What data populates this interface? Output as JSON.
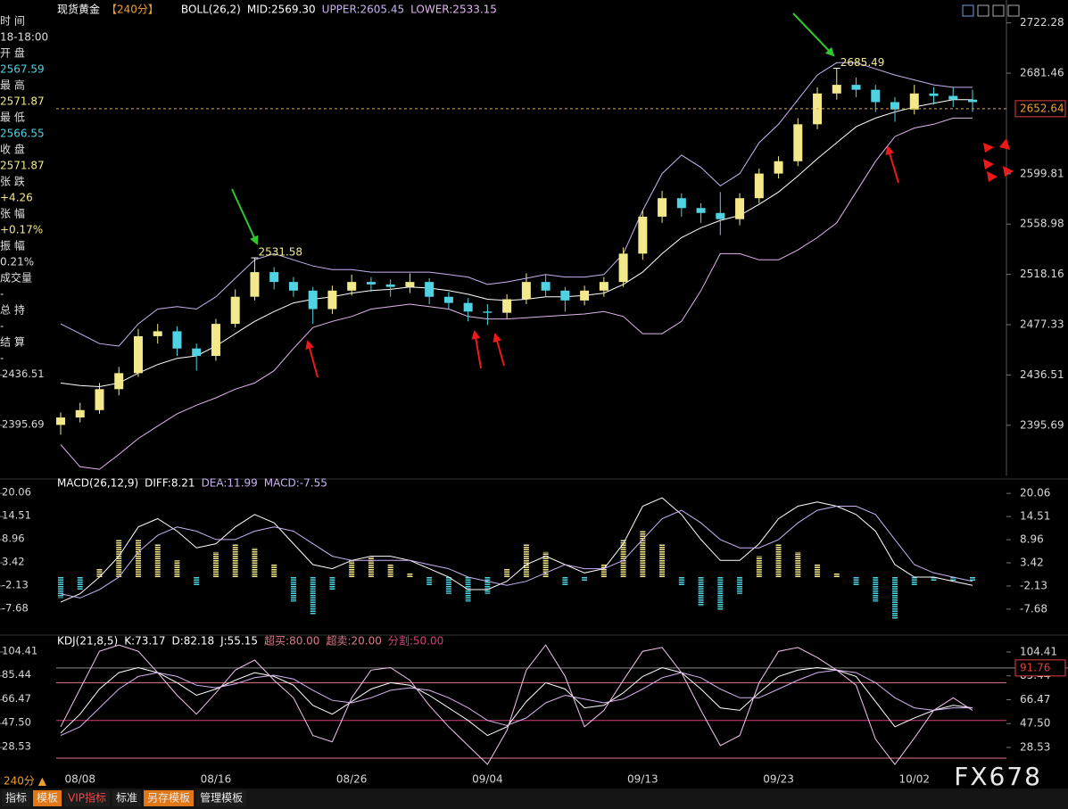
{
  "chart_data": [
    {
      "type": "candlestick",
      "title": "现货黄金",
      "period": "【240分】",
      "indicator": "BOLL(26,2)",
      "categories": [
        null,
        "08/08",
        null,
        null,
        null,
        null,
        null,
        null,
        "08/16",
        null,
        null,
        null,
        null,
        null,
        null,
        "08/26",
        null,
        null,
        null,
        null,
        null,
        null,
        "09/04",
        null,
        null,
        null,
        null,
        null,
        null,
        null,
        "09/13",
        null,
        null,
        null,
        null,
        null,
        null,
        "09/23",
        null,
        null,
        null,
        null,
        null,
        null,
        "10/02",
        null,
        null,
        null
      ],
      "open": [
        2396,
        2402,
        2408,
        2425,
        2438,
        2468,
        2472,
        2458,
        2452,
        2478,
        2500,
        2520,
        2512,
        2505,
        2490,
        2505,
        2512,
        2510,
        2508,
        2512,
        2500,
        2495,
        2488,
        2487,
        2498,
        2512,
        2505,
        2497,
        2505,
        2512,
        2535,
        2565,
        2580,
        2572,
        2568,
        2563,
        2580,
        2600,
        2610,
        2640,
        2665,
        2672,
        2668,
        2658,
        2652,
        2665,
        2663,
        2660
      ],
      "high": [
        2406,
        2414,
        2430,
        2443,
        2474,
        2478,
        2476,
        2462,
        2482,
        2506,
        2531.58,
        2524,
        2516,
        2508,
        2509,
        2518,
        2516,
        2514,
        2519,
        2515,
        2504,
        2499,
        2494,
        2502,
        2519,
        2518,
        2508,
        2509,
        2516,
        2540,
        2570,
        2586,
        2584,
        2576,
        2585,
        2584,
        2604,
        2614,
        2645,
        2670,
        2685.49,
        2678,
        2672,
        2662,
        2672,
        2670,
        2670,
        2668
      ],
      "low": [
        2388,
        2398,
        2405,
        2420,
        2435,
        2462,
        2452,
        2440,
        2448,
        2475,
        2497,
        2506,
        2500,
        2478,
        2486,
        2501,
        2504,
        2500,
        2503,
        2494,
        2490,
        2480,
        2477,
        2482,
        2494,
        2500,
        2488,
        2493,
        2500,
        2508,
        2530,
        2560,
        2565,
        2560,
        2550,
        2558,
        2576,
        2596,
        2606,
        2636,
        2660,
        2662,
        2650,
        2642,
        2648,
        2656,
        2654,
        2650
      ],
      "close": [
        2402,
        2408,
        2425,
        2438,
        2468,
        2472,
        2458,
        2452,
        2478,
        2500,
        2520,
        2512,
        2505,
        2490,
        2505,
        2512,
        2510,
        2508,
        2512,
        2500,
        2495,
        2488,
        2487,
        2498,
        2512,
        2505,
        2497,
        2505,
        2512,
        2535,
        2565,
        2580,
        2572,
        2568,
        2563,
        2580,
        2600,
        2610,
        2640,
        2665,
        2672,
        2668,
        2658,
        2652,
        2665,
        2663,
        2660,
        2658
      ],
      "up_color": "#f3e98a",
      "down_color": "#4fd3e2",
      "series": [
        {
          "name": "MID:2569.30",
          "color": "#ffffff",
          "values": [
            2430,
            2428,
            2427,
            2430,
            2438,
            2445,
            2450,
            2452,
            2460,
            2470,
            2480,
            2488,
            2495,
            2498,
            2500,
            2503,
            2505,
            2506,
            2508,
            2507,
            2505,
            2502,
            2498,
            2497,
            2498,
            2500,
            2500,
            2501,
            2503,
            2510,
            2520,
            2535,
            2548,
            2556,
            2562,
            2566,
            2575,
            2585,
            2598,
            2612,
            2625,
            2638,
            2645,
            2650,
            2654,
            2657,
            2660,
            2660
          ]
        },
        {
          "name": "UPPER:2605.45",
          "color": "#c9b2f2",
          "values": [
            2478,
            2470,
            2462,
            2460,
            2478,
            2490,
            2492,
            2490,
            2500,
            2515,
            2530,
            2535,
            2530,
            2525,
            2522,
            2522,
            2520,
            2520,
            2520,
            2520,
            2518,
            2516,
            2510,
            2512,
            2515,
            2518,
            2516,
            2516,
            2518,
            2535,
            2570,
            2600,
            2615,
            2605,
            2590,
            2600,
            2625,
            2640,
            2660,
            2680,
            2690,
            2690,
            2685,
            2680,
            2676,
            2672,
            2670,
            2670
          ]
        },
        {
          "name": "LOWER:2533.15",
          "color": "#e3b5f0",
          "values": [
            2380,
            2362,
            2360,
            2372,
            2385,
            2395,
            2405,
            2412,
            2418,
            2425,
            2430,
            2440,
            2458,
            2475,
            2480,
            2484,
            2490,
            2492,
            2494,
            2492,
            2490,
            2484,
            2482,
            2482,
            2483,
            2484,
            2485,
            2486,
            2488,
            2484,
            2470,
            2470,
            2480,
            2505,
            2535,
            2535,
            2530,
            2530,
            2538,
            2548,
            2560,
            2585,
            2610,
            2630,
            2637,
            2640,
            2645,
            2645
          ]
        }
      ],
      "last_price": 2652.64,
      "last_price_color": "#f0a030",
      "ylim": [
        2355,
        2730
      ],
      "yticks": [
        2395.69,
        2436.51,
        2477.33,
        2518.16,
        2558.98,
        2599.81,
        2681.46,
        2722.28
      ]
    },
    {
      "type": "macd",
      "indicator": "MACD(26,12,9)",
      "histogram": {
        "name": "MACD:-7.55",
        "up_color": "#f3e98a",
        "down_color": "#4fd3e2",
        "values": [
          -5,
          -3,
          2,
          9,
          9,
          8,
          4,
          -2,
          6,
          8,
          7,
          3,
          -6,
          -9,
          -3,
          4,
          5,
          3,
          1,
          -2,
          -4,
          -6,
          -4,
          2,
          8,
          6,
          -2,
          -1,
          3,
          9,
          11,
          8,
          -2,
          -7,
          -8,
          -4,
          5,
          8,
          6,
          3,
          1,
          -2,
          -6,
          -10,
          -2,
          -1,
          -1,
          -1
        ]
      },
      "series": [
        {
          "name": "DIFF:8.21",
          "color": "#ffffff",
          "values": [
            -6,
            -4,
            0,
            5,
            12,
            14,
            11,
            7,
            8,
            12,
            15,
            13,
            8,
            3,
            2,
            4,
            5,
            5,
            4,
            2,
            0,
            -3,
            -3,
            -1,
            3,
            5,
            3,
            1,
            2,
            8,
            17,
            19,
            15,
            9,
            4,
            4,
            8,
            14,
            17,
            18,
            17,
            15,
            11,
            3,
            0,
            0,
            -1,
            -2
          ]
        },
        {
          "name": "DEA:11.99",
          "color": "#c9b2f2",
          "values": [
            -4,
            -5,
            -3,
            0,
            6,
            10,
            12,
            11,
            9,
            9,
            11,
            12,
            11,
            8,
            5,
            4,
            4,
            4,
            4,
            3,
            2,
            0,
            -1,
            -2,
            -1,
            1,
            3,
            2,
            2,
            4,
            9,
            14,
            16,
            13,
            9,
            7,
            7,
            9,
            13,
            16,
            17,
            17,
            15,
            9,
            3,
            1,
            0,
            -1
          ]
        }
      ],
      "ylim": [
        -12.4,
        21.8
      ],
      "yticks": [
        20.06,
        14.51,
        8.96,
        3.42,
        -2.13,
        -7.68
      ]
    },
    {
      "type": "kdj",
      "indicator": "KDJ(21,8,5)",
      "series": [
        {
          "name": "K:73.17",
          "color": "#ffffff",
          "values": [
            40,
            55,
            75,
            88,
            92,
            88,
            80,
            70,
            75,
            82,
            88,
            85,
            78,
            62,
            55,
            65,
            75,
            80,
            78,
            70,
            60,
            50,
            38,
            45,
            65,
            80,
            75,
            60,
            62,
            72,
            85,
            92,
            88,
            75,
            60,
            58,
            72,
            85,
            90,
            92,
            90,
            85,
            65,
            45,
            52,
            58,
            62,
            60
          ]
        },
        {
          "name": "D:82.18",
          "color": "#d6b4f2",
          "values": [
            38,
            45,
            60,
            75,
            85,
            88,
            85,
            78,
            76,
            79,
            84,
            86,
            83,
            74,
            66,
            64,
            68,
            74,
            76,
            74,
            68,
            60,
            50,
            46,
            52,
            64,
            70,
            67,
            64,
            67,
            75,
            84,
            88,
            84,
            75,
            68,
            68,
            75,
            82,
            88,
            90,
            88,
            80,
            68,
            60,
            58,
            60,
            60
          ]
        },
        {
          "name": "J:55.15",
          "color": "#f2c6ee",
          "values": [
            45,
            75,
            105,
            110,
            105,
            88,
            70,
            55,
            72,
            90,
            98,
            82,
            68,
            38,
            33,
            68,
            90,
            92,
            82,
            62,
            45,
            30,
            15,
            42,
            90,
            110,
            85,
            45,
            58,
            82,
            105,
            108,
            88,
            58,
            30,
            38,
            80,
            105,
            108,
            100,
            90,
            78,
            35,
            15,
            36,
            58,
            68,
            58
          ]
        }
      ],
      "levels": [
        {
          "value": 80,
          "label": "超买:80.00",
          "color": "#e07a8a"
        },
        {
          "value": 20,
          "label": "超卖:20.00",
          "color": "#e07a8a"
        },
        {
          "value": 50,
          "label": "分割:50.00",
          "color": "#d0407a"
        }
      ],
      "cursor_value": 91.76,
      "ylim": [
        12.9,
        110.8
      ],
      "yticks": [
        104.41,
        85.44,
        66.47,
        {
          "value": 47.5,
          "label": "47.50"
        },
        28.53
      ]
    }
  ],
  "info_panel": [
    {
      "label": "时 间",
      "value": "18-18:00",
      "color": "#dddddd"
    },
    {
      "label": "开 盘",
      "value": "2567.59",
      "color": "#4fd3e2"
    },
    {
      "label": "最 高",
      "value": "2571.87",
      "color": "#f3e98a"
    },
    {
      "label": "最 低",
      "value": "2566.55",
      "color": "#4fd3e2"
    },
    {
      "label": "收 盘",
      "value": "2571.87",
      "color": "#f3e98a"
    },
    {
      "label": "张 跌",
      "value": "+4.26",
      "color": "#f3e98a"
    },
    {
      "label": "张 幅",
      "value": "+0.17%",
      "color": "#f3e98a"
    },
    {
      "label": "振 幅",
      "value": "0.21%",
      "color": "#dddddd"
    },
    {
      "label": "成交量",
      "value": "-",
      "color": "#dddddd"
    },
    {
      "label": "总 持",
      "value": "-",
      "color": "#dddddd"
    },
    {
      "label": "结 算",
      "value": "-",
      "color": "#dddddd"
    }
  ],
  "period_button": "240分 ▲",
  "toolbar": [
    "指标",
    "模板",
    "VIP指标",
    "标准",
    "另存模板",
    "管理模板"
  ],
  "watermark": "FX678"
}
